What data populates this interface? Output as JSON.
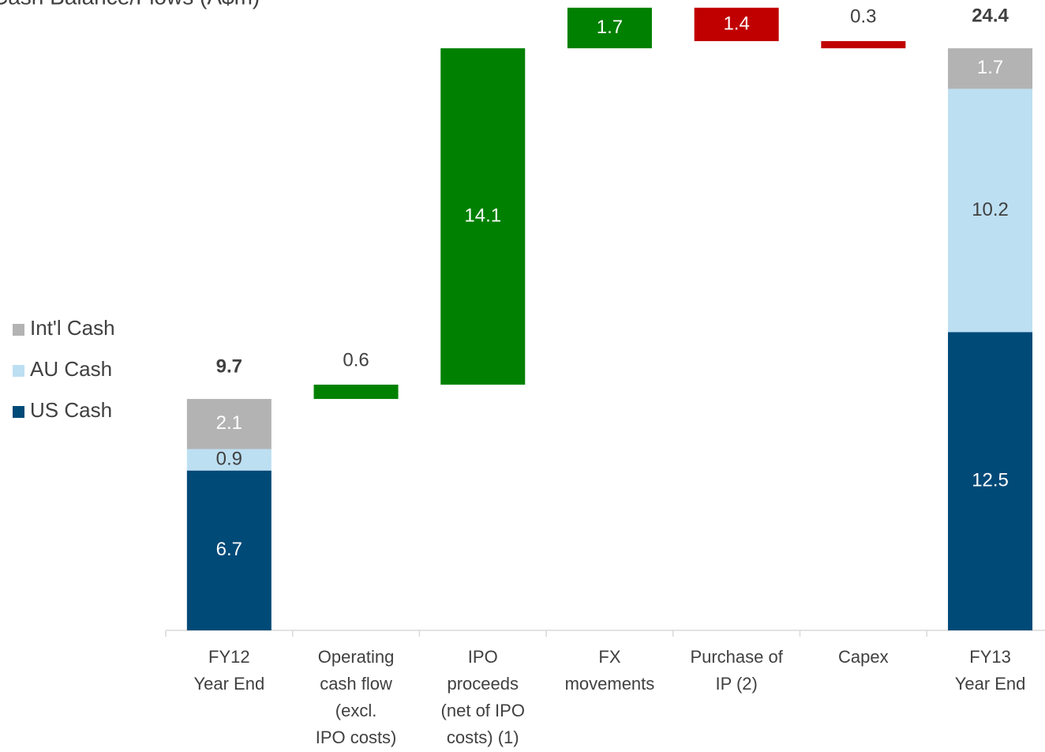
{
  "chart_data": {
    "type": "waterfall",
    "title": "Cash Balance/Flows (A$m)",
    "categories": [
      [
        "FY12",
        "Year End"
      ],
      [
        "Operating",
        "cash flow",
        "(excl.",
        "IPO costs)"
      ],
      [
        "IPO",
        "proceeds",
        "(net of IPO",
        "costs) (1)"
      ],
      [
        "FX",
        "movements"
      ],
      [
        "Purchase of",
        "IP (2)"
      ],
      [
        "Capex"
      ],
      [
        "FY13",
        "Year End"
      ]
    ],
    "series": [
      {
        "name": "US Cash",
        "color": "#004a78",
        "values": [
          6.7,
          null,
          null,
          null,
          null,
          null,
          12.5
        ]
      },
      {
        "name": "AU Cash",
        "color": "#bddff2",
        "values": [
          0.9,
          null,
          null,
          null,
          null,
          null,
          10.2
        ]
      },
      {
        "name": "Int'l Cash",
        "color": "#b3b3b3",
        "values": [
          2.1,
          null,
          null,
          null,
          null,
          null,
          1.7
        ]
      }
    ],
    "totals": [
      9.7,
      null,
      null,
      null,
      null,
      null,
      24.4
    ],
    "flows": [
      null,
      0.6,
      14.1,
      1.7,
      -1.4,
      -0.3,
      null
    ],
    "value_labels": [
      null,
      "0.6",
      "14.1",
      "1.7",
      "1.4",
      "0.3",
      null
    ],
    "increase_color": "#008000",
    "decrease_color": "#c00000"
  }
}
